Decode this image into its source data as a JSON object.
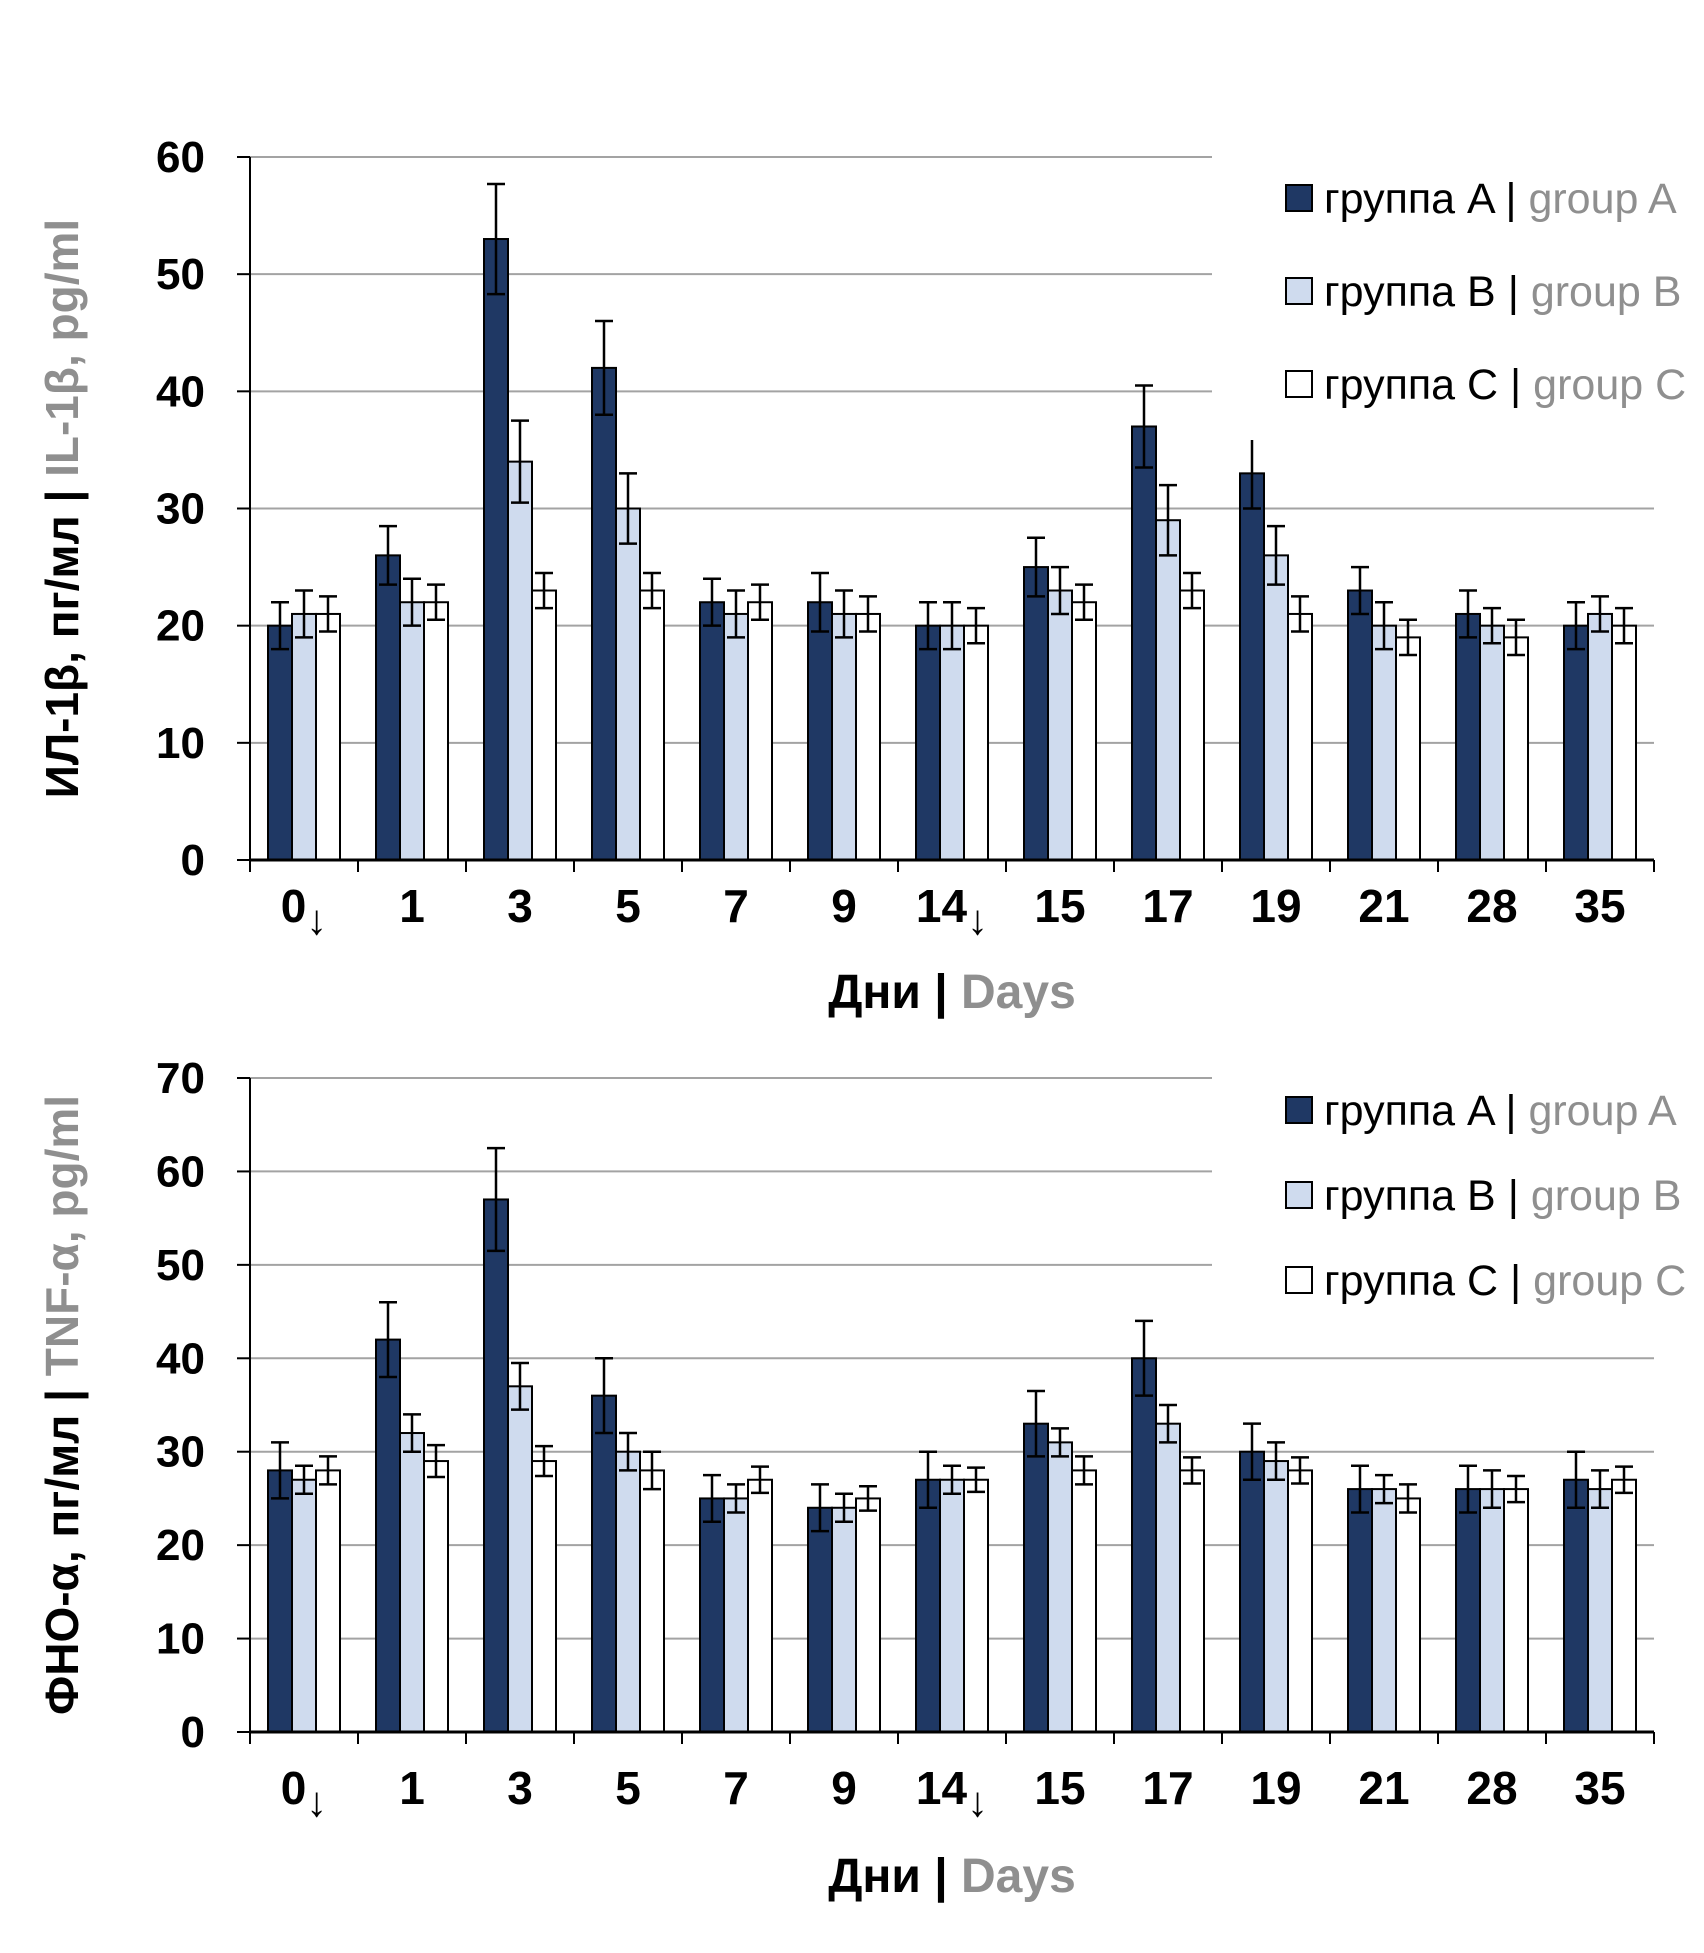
{
  "page": {
    "background": "#ffffff"
  },
  "colors": {
    "group_a": "#1F3864",
    "group_b": "#CFDBEE",
    "group_c": "#FFFFFF",
    "bar_border": "#000000",
    "gridline": "#A3A3A3",
    "axis": "#000000",
    "error_bar": "#000000",
    "text_black": "#000000",
    "text_gray": "#8F8F8F",
    "legend_background": "#FFFFFF"
  },
  "legend": {
    "items": [
      {
        "label_ru": "группа A",
        "separator": "|",
        "label_en": "group A",
        "color_key": "group_a"
      },
      {
        "label_ru": "группа B",
        "separator": "|",
        "label_en": "group B",
        "color_key": "group_b"
      },
      {
        "label_ru": "группа C",
        "separator": "|",
        "label_en": "group C",
        "color_key": "group_c"
      }
    ],
    "position": "top-right-inside"
  },
  "chart_data": [
    {
      "id": "il1b",
      "type": "bar",
      "title": "",
      "y_axis_title_ru": "ИЛ-1β, пг/мл",
      "y_axis_title_sep": "|",
      "y_axis_title_en": "IL-1β, pg/ml",
      "x_axis_title_ru": "Дни",
      "x_axis_title_sep": "|",
      "x_axis_title_en": "Days",
      "ylim": [
        0,
        60
      ],
      "ytick_step": 10,
      "grid": true,
      "legend_position": "top-right-inside",
      "categories": [
        "0↓",
        "1",
        "3",
        "5",
        "7",
        "9",
        "14↓",
        "15",
        "17",
        "19",
        "21",
        "28",
        "35"
      ],
      "series": [
        {
          "name_ru": "группа A",
          "name_en": "group A",
          "color_key": "group_a",
          "values": [
            20,
            26,
            53,
            42,
            22,
            22,
            20,
            25,
            37,
            33,
            23,
            21,
            20
          ],
          "errors": [
            2,
            2.5,
            4.7,
            4,
            2,
            2.5,
            2,
            2.5,
            3.5,
            3,
            2,
            2,
            2
          ]
        },
        {
          "name_ru": "группа B",
          "name_en": "group B",
          "color_key": "group_b",
          "values": [
            21,
            22,
            34,
            30,
            21,
            21,
            20,
            23,
            29,
            26,
            20,
            20,
            21
          ],
          "errors": [
            2,
            2,
            3.5,
            3,
            2,
            2,
            2,
            2,
            3,
            2.5,
            2,
            1.5,
            1.5
          ]
        },
        {
          "name_ru": "группа C",
          "name_en": "group C",
          "color_key": "group_c",
          "values": [
            21,
            22,
            23,
            23,
            22,
            21,
            20,
            22,
            23,
            21,
            19,
            19,
            20
          ],
          "errors": [
            1.5,
            1.5,
            1.5,
            1.5,
            1.5,
            1.5,
            1.5,
            1.5,
            1.5,
            1.5,
            1.5,
            1.5,
            1.5
          ]
        }
      ]
    },
    {
      "id": "tnfa",
      "type": "bar",
      "title": "",
      "y_axis_title_ru": "ФНО-α, пг/мл",
      "y_axis_title_sep": "|",
      "y_axis_title_en": "TNF-α, pg/ml",
      "x_axis_title_ru": "Дни",
      "x_axis_title_sep": "|",
      "x_axis_title_en": "Days",
      "ylim": [
        0,
        70
      ],
      "ytick_step": 10,
      "grid": true,
      "legend_position": "top-right-inside",
      "categories": [
        "0↓",
        "1",
        "3",
        "5",
        "7",
        "9",
        "14↓",
        "15",
        "17",
        "19",
        "21",
        "28",
        "35"
      ],
      "series": [
        {
          "name_ru": "группа A",
          "name_en": "group A",
          "color_key": "group_a",
          "values": [
            28,
            42,
            57,
            36,
            25,
            24,
            27,
            33,
            40,
            30,
            26,
            26,
            27
          ],
          "errors": [
            3,
            4,
            5.5,
            4,
            2.5,
            2.5,
            3,
            3.5,
            4,
            3,
            2.5,
            2.5,
            3
          ]
        },
        {
          "name_ru": "группа B",
          "name_en": "group B",
          "color_key": "group_b",
          "values": [
            27,
            32,
            37,
            30,
            25,
            24,
            27,
            31,
            33,
            29,
            26,
            26,
            26
          ],
          "errors": [
            1.5,
            2,
            2.5,
            2,
            1.5,
            1.5,
            1.5,
            1.5,
            2,
            2,
            1.5,
            2,
            2
          ]
        },
        {
          "name_ru": "группа C",
          "name_en": "group C",
          "color_key": "group_c",
          "values": [
            28,
            29,
            29,
            28,
            27,
            25,
            27,
            28,
            28,
            28,
            25,
            26,
            27
          ],
          "errors": [
            1.5,
            1.7,
            1.6,
            2,
            1.4,
            1.3,
            1.3,
            1.5,
            1.4,
            1.4,
            1.5,
            1.4,
            1.4
          ]
        }
      ]
    }
  ]
}
